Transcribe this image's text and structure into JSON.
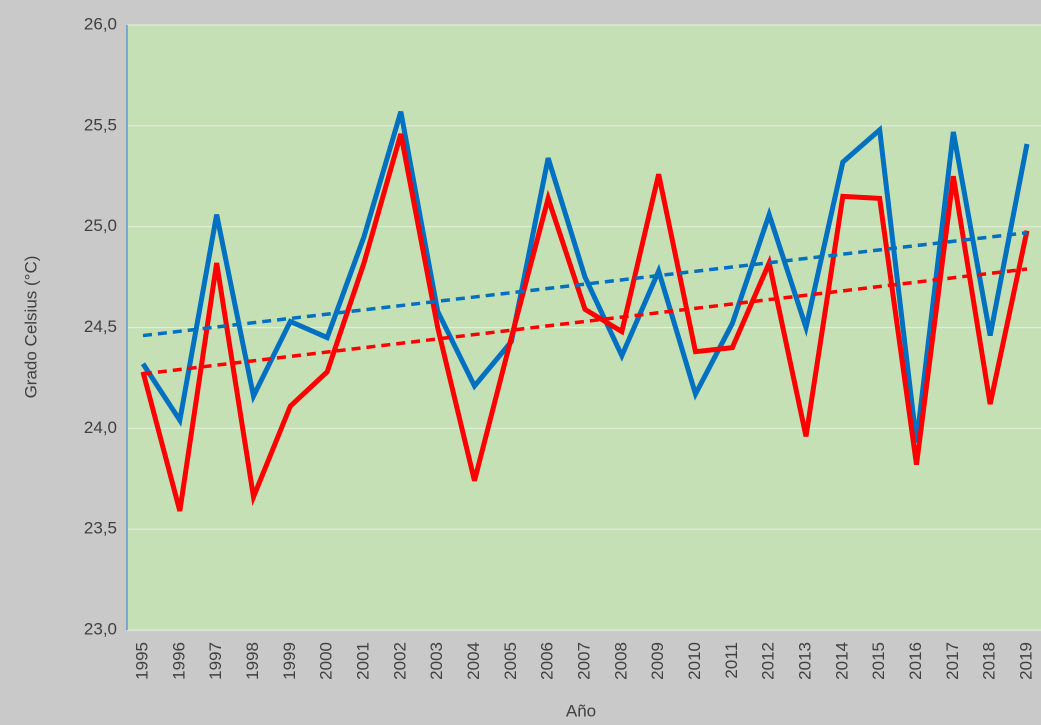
{
  "chart_data": {
    "type": "line",
    "xlabel": "Año",
    "ylabel": "Grado Celsius (°C)",
    "categories": [
      "1995",
      "1996",
      "1997",
      "1998",
      "1999",
      "2000",
      "2001",
      "2002",
      "2003",
      "2004",
      "2005",
      "2006",
      "2007",
      "2008",
      "2009",
      "2010",
      "2011",
      "2012",
      "2013",
      "2014",
      "2015",
      "2016",
      "2017",
      "2018",
      "2019"
    ],
    "series": [
      {
        "color": "#0070c0",
        "values": [
          24.32,
          24.04,
          25.06,
          24.16,
          24.53,
          24.45,
          24.95,
          25.57,
          24.58,
          24.21,
          24.43,
          25.34,
          24.75,
          24.36,
          24.78,
          24.17,
          24.52,
          25.06,
          24.5,
          25.32,
          25.48,
          23.93,
          25.47,
          24.46,
          25.41
        ]
      },
      {
        "color": "#ff0000",
        "values": [
          24.28,
          23.59,
          24.82,
          23.66,
          24.11,
          24.28,
          24.82,
          25.46,
          24.5,
          23.74,
          24.45,
          25.14,
          24.59,
          24.48,
          25.26,
          24.38,
          24.4,
          24.82,
          23.96,
          25.15,
          25.14,
          23.82,
          25.25,
          24.12,
          24.98
        ]
      }
    ],
    "trendlines": [
      {
        "color": "#0070c0",
        "dashed": true,
        "values": [
          24.46,
          24.97
        ]
      },
      {
        "color": "#ff0000",
        "dashed": true,
        "values": [
          24.27,
          24.79
        ]
      }
    ],
    "ylim": [
      23,
      26
    ],
    "yticks": [
      {
        "value": 23,
        "label": "23,0"
      },
      {
        "value": 23.5,
        "label": "23,5"
      },
      {
        "value": 24,
        "label": "24,0"
      },
      {
        "value": 24.5,
        "label": "24,5"
      },
      {
        "value": 25,
        "label": "25,0"
      },
      {
        "value": 25.5,
        "label": "25,5"
      },
      {
        "value": 26,
        "label": "26,0"
      }
    ],
    "grid": true
  }
}
